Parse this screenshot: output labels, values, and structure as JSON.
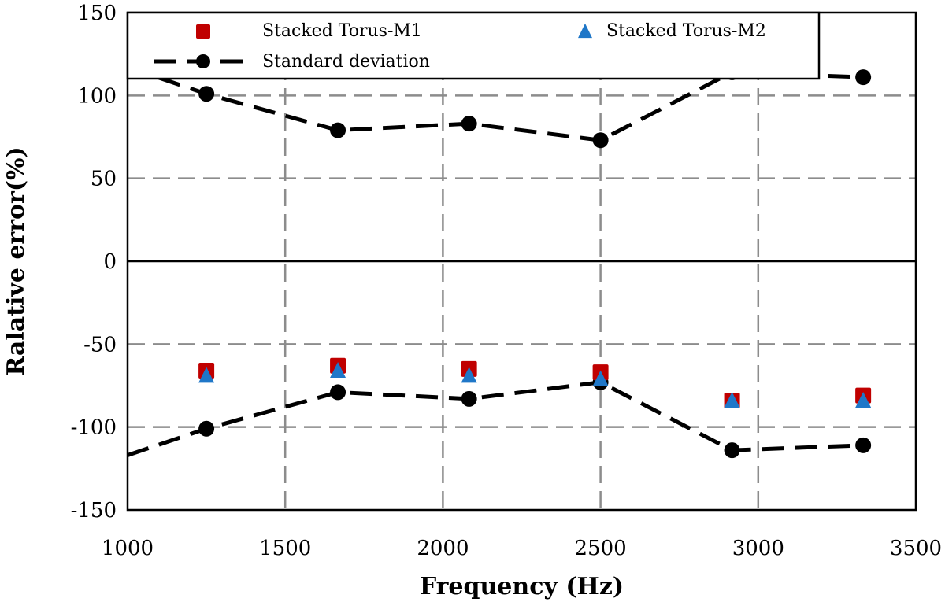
{
  "chart_data": {
    "type": "scatter",
    "title": "",
    "xlabel": "Frequency (Hz)",
    "ylabel": "Ralative error(%)",
    "xlim": [
      1000,
      3500
    ],
    "ylim": [
      -150,
      150
    ],
    "xticks": [
      1000,
      1500,
      2000,
      2500,
      3000,
      3500
    ],
    "yticks": [
      150,
      100,
      50,
      0,
      -50,
      -100,
      -150
    ],
    "grid": true,
    "legend_position": "top",
    "series": [
      {
        "name": "Stacked Torus-M1",
        "kind": "marker",
        "marker": "square",
        "color": "#c00000",
        "points": [
          [
            1250,
            -66
          ],
          [
            1667,
            -63
          ],
          [
            2083,
            -65
          ],
          [
            2500,
            -67
          ],
          [
            2917,
            -84
          ],
          [
            3333,
            -81
          ]
        ]
      },
      {
        "name": "Stacked Torus-M2",
        "kind": "marker",
        "marker": "triangle",
        "color": "#1f77c8",
        "points": [
          [
            1250,
            -69
          ],
          [
            1667,
            -66
          ],
          [
            2083,
            -69
          ],
          [
            2500,
            -71
          ],
          [
            2917,
            -84
          ],
          [
            3333,
            -84
          ]
        ]
      },
      {
        "name": "Standard deviation",
        "kind": "dashed-line-markers",
        "marker": "circle",
        "color": "#000000",
        "points": [
          [
            1000,
            117
          ],
          [
            1250,
            101
          ],
          [
            1667,
            79
          ],
          [
            2083,
            83
          ],
          [
            2500,
            73
          ],
          [
            2917,
            114
          ],
          [
            3333,
            111
          ]
        ],
        "mirrored": true
      }
    ]
  }
}
